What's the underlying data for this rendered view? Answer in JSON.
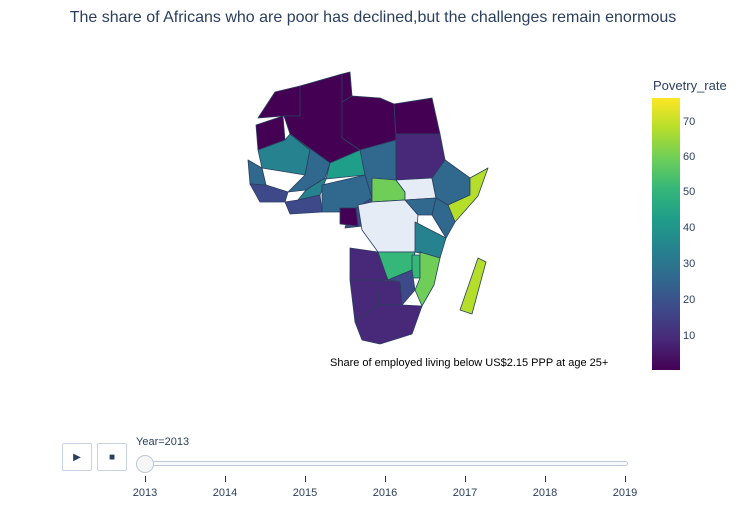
{
  "title": "The share of Africans who are poor has declined,but the challenges remain enormous",
  "colorbar": {
    "title": "Povetry_rate",
    "ticks": [
      "10",
      "20",
      "30",
      "40",
      "50",
      "60",
      "70"
    ],
    "colorscale": [
      "#440154",
      "#482878",
      "#3e4989",
      "#31688e",
      "#26828e",
      "#1f9e89",
      "#35b779",
      "#6ece58",
      "#b5de2b",
      "#fde725"
    ]
  },
  "annotation": "Share of employed living below US$2.15 PPP at age 25+",
  "animation": {
    "frame_label": "Year=2013",
    "steps": [
      "2013",
      "2014",
      "2015",
      "2016",
      "2017",
      "2018",
      "2019"
    ],
    "active": "2013",
    "play_icon": "play-icon",
    "stop_icon": "stop-icon"
  },
  "map": {
    "type": "choropleth",
    "region": "Africa",
    "nodata_color": "#e5ecf6",
    "countries": [
      {
        "name": "Morocco",
        "value": 4
      },
      {
        "name": "Algeria",
        "value": 1
      },
      {
        "name": "Tunisia",
        "value": 1
      },
      {
        "name": "Libya",
        "value": 1
      },
      {
        "name": "Egypt",
        "value": 1
      },
      {
        "name": "Western Sahara",
        "value": 3
      },
      {
        "name": "Mauritania",
        "value": 35
      },
      {
        "name": "Mali",
        "value": 34
      },
      {
        "name": "Niger",
        "value": 45
      },
      {
        "name": "Chad",
        "value": 27
      },
      {
        "name": "Sudan",
        "value": 14
      },
      {
        "name": "Senegal",
        "value": 31
      },
      {
        "name": "Guinea",
        "value": 24
      },
      {
        "name": "Burkina Faso",
        "value": 38
      },
      {
        "name": "Ghana",
        "value": 24
      },
      {
        "name": "Nigeria",
        "value": 33
      },
      {
        "name": "Cameroon",
        "value": 25
      },
      {
        "name": "Central African Republic",
        "value": 67
      },
      {
        "name": "South Sudan",
        "value": null
      },
      {
        "name": "Ethiopia",
        "value": 26
      },
      {
        "name": "Somalia",
        "value": 75
      },
      {
        "name": "Gabon",
        "value": 3
      },
      {
        "name": "DR Congo",
        "value": null
      },
      {
        "name": "Uganda",
        "value": 30
      },
      {
        "name": "Kenya",
        "value": 26
      },
      {
        "name": "Tanzania",
        "value": 38
      },
      {
        "name": "Angola",
        "value": 15
      },
      {
        "name": "Zambia",
        "value": 55
      },
      {
        "name": "Malawi",
        "value": 60
      },
      {
        "name": "Mozambique",
        "value": 62
      },
      {
        "name": "Namibia",
        "value": 9
      },
      {
        "name": "Botswana",
        "value": 12
      },
      {
        "name": "Zimbabwe",
        "value": 20
      },
      {
        "name": "South Africa",
        "value": 12
      },
      {
        "name": "Madagascar",
        "value": 77
      }
    ]
  }
}
